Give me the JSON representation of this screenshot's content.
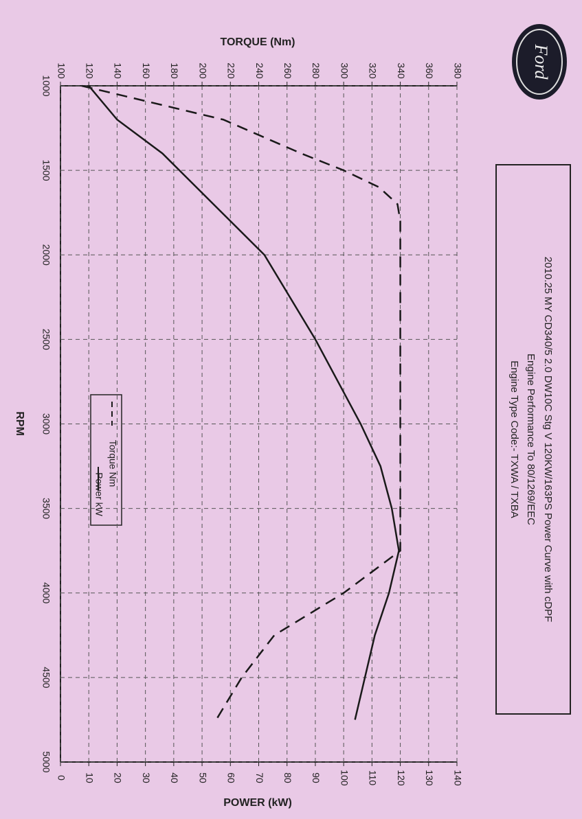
{
  "logo": "Ford",
  "chart_data": {
    "type": "line",
    "title": "2010.25 MY  CD340/5 2.0 DW10C Stg V 120KW/163PS Power Curve with cDPF",
    "subtitle": [
      "Engine Performance To 80/1269/EEC",
      "Engine Type Code:- TXWA / TXBA"
    ],
    "xlabel": "RPM",
    "ylabel": "TORQUE (Nm)",
    "y2label": "POWER (kW)",
    "x": [
      1000,
      1200,
      1400,
      1500,
      1600,
      1700,
      1800,
      2000,
      2500,
      2750,
      3000,
      3250,
      3500,
      3750,
      4000,
      4250,
      4500,
      4750
    ],
    "series": [
      {
        "name": "Torque Nm",
        "color": "#1a1a1a",
        "dashed": true,
        "values": [
          115,
          215,
          270,
          300,
          325,
          338,
          340,
          340,
          340,
          340,
          340,
          340,
          340,
          340,
          300,
          251,
          228,
          210
        ]
      },
      {
        "name": "Power kW",
        "color": "#1a1a1a",
        "dashed": false,
        "axis": "y2",
        "values": [
          10,
          20,
          36,
          42,
          48,
          54,
          60,
          72,
          90,
          98,
          106,
          113,
          117,
          119.5,
          116,
          111,
          107.5,
          104
        ]
      }
    ],
    "xlim": [
      1000,
      5000
    ],
    "xticks": [
      1000,
      1500,
      2000,
      2500,
      3000,
      3500,
      4000,
      4500,
      5000
    ],
    "ylim": [
      100,
      380
    ],
    "yticks": [
      100,
      120,
      140,
      160,
      180,
      200,
      220,
      240,
      260,
      280,
      300,
      320,
      340,
      360,
      380
    ],
    "y2lim": [
      0,
      140
    ],
    "y2ticks": [
      0,
      10,
      20,
      30,
      40,
      50,
      60,
      70,
      80,
      90,
      100,
      110,
      120,
      130,
      140
    ],
    "grid": true
  }
}
